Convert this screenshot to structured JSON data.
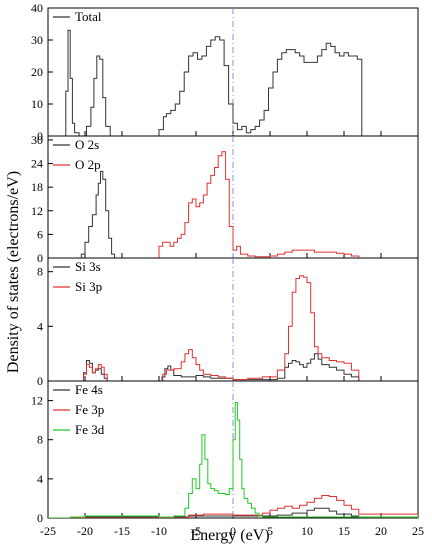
{
  "chart_data": {
    "type": "line",
    "xlabel": "Energy (eV)",
    "ylabel": "Density of states (electrons/eV)",
    "xlim": [
      -25,
      25
    ],
    "xticks": [
      "-25",
      "-20",
      "-15",
      "-10",
      "-5",
      "0",
      "5",
      "10",
      "15",
      "20",
      "25"
    ],
    "fermi_level": 0,
    "fermi_line_color": "#8c8cd8",
    "panels": [
      {
        "ylim": [
          0,
          40
        ],
        "yticks": [
          "0",
          "10",
          "20",
          "30",
          "40"
        ],
        "legend": [
          "Total"
        ],
        "series": [
          {
            "name": "Total",
            "color": "#333333",
            "x": [
              -25,
              -22.8,
              -22.6,
              -22.3,
              -22.0,
              -21.7,
              -21.4,
              -20.8,
              -19.8,
              -19.2,
              -18.8,
              -18.4,
              -18.0,
              -17.6,
              -17.2,
              -16.6,
              -16.0,
              -11.0,
              -10.0,
              -9.4,
              -9.0,
              -8.4,
              -7.8,
              -7.2,
              -6.6,
              -6.0,
              -5.4,
              -4.8,
              -4.2,
              -3.6,
              -3.0,
              -2.4,
              -1.8,
              -1.2,
              -0.6,
              0.0,
              0.6,
              1.2,
              1.8,
              2.4,
              3.0,
              3.6,
              4.2,
              4.8,
              5.4,
              6.0,
              6.6,
              7.2,
              7.8,
              8.4,
              9.0,
              9.6,
              10.2,
              10.8,
              11.4,
              12.0,
              12.6,
              13.2,
              13.8,
              14.4,
              15.0,
              15.6,
              16.2,
              16.8,
              17.4,
              18.0,
              25
            ],
            "y": [
              0,
              0,
              14,
              33,
              18,
              4,
              1,
              0,
              3,
              9,
              18,
              25,
              24,
              12,
              3,
              0,
              0,
              0,
              2,
              6,
              7,
              8,
              10,
              14,
              20,
              25,
              26,
              24,
              25,
              28,
              30,
              31,
              30,
              22,
              10,
              4,
              2,
              3,
              1,
              2,
              3,
              5,
              8,
              15,
              20,
              24,
              26,
              27,
              27,
              26,
              25,
              23,
              23,
              23,
              25,
              27,
              29,
              28,
              26,
              25,
              26,
              25,
              25,
              24,
              0,
              0,
              0
            ]
          }
        ]
      },
      {
        "ylim": [
          0,
          31
        ],
        "yticks": [
          "0",
          "6",
          "12",
          "18",
          "24",
          "30"
        ],
        "legend": [
          "O 2s",
          "O 2p"
        ],
        "series": [
          {
            "name": "O 2s",
            "color": "#333333",
            "x": [
              -25,
              -21.0,
              -20.5,
              -20.0,
              -19.5,
              -19.0,
              -18.5,
              -18.2,
              -17.9,
              -17.6,
              -17.2,
              -16.8,
              -16.4,
              -16.0,
              -15.0,
              25
            ],
            "y": [
              0,
              0,
              1,
              4,
              8,
              11,
              16,
              19,
              22,
              20,
              12,
              5,
              1,
              0,
              0,
              0
            ]
          },
          {
            "name": "O 2p",
            "color": "#e03030",
            "x": [
              -25,
              -10.5,
              -10.0,
              -9.5,
              -9.0,
              -8.5,
              -8.0,
              -7.5,
              -7.0,
              -6.5,
              -6.0,
              -5.5,
              -5.0,
              -4.5,
              -4.0,
              -3.5,
              -3.0,
              -2.5,
              -2.0,
              -1.5,
              -1.0,
              -0.5,
              0.0,
              0.5,
              1.0,
              2.0,
              3.0,
              4.0,
              5.0,
              6.0,
              7.0,
              8.0,
              9.0,
              10.0,
              11.0,
              12.0,
              13.0,
              14.0,
              15.0,
              16.0,
              17.0,
              25
            ],
            "y": [
              0,
              0,
              3,
              4,
              4,
              3,
              4,
              5,
              6,
              9,
              14,
              15,
              13,
              14,
              16,
              19,
              21,
              23,
              26,
              27,
              20,
              8,
              2,
              3,
              1,
              0.5,
              0.3,
              0.3,
              0.5,
              1,
              1.5,
              2,
              2,
              2,
              1.5,
              1.5,
              1.5,
              1.2,
              1,
              0.5,
              0,
              0
            ]
          }
        ]
      },
      {
        "ylim": [
          0,
          9
        ],
        "yticks": [
          "0",
          "4",
          "8"
        ],
        "legend": [
          "Si 3s",
          "Si 3p"
        ],
        "series": [
          {
            "name": "Si 3s",
            "color": "#333333",
            "x": [
              -25,
              -20.6,
              -20.2,
              -19.8,
              -19.4,
              -19.0,
              -18.6,
              -18.2,
              -17.8,
              -17.4,
              -17.0,
              -10.0,
              -9.6,
              -9.2,
              -8.8,
              -8.4,
              -8.0,
              -7.0,
              -6.0,
              -5.0,
              -4.0,
              -3.0,
              -2.0,
              0.0,
              2.0,
              4.0,
              6.0,
              7.0,
              7.5,
              8.0,
              8.5,
              9.0,
              9.5,
              10.0,
              10.5,
              11.0,
              11.5,
              12.0,
              13.0,
              14.0,
              15.0,
              16.0,
              17.0,
              25
            ],
            "y": [
              0,
              0,
              0.6,
              1.5,
              1.3,
              0.6,
              0.8,
              0.9,
              0.5,
              0.2,
              0,
              0,
              0.3,
              0.9,
              1.1,
              0.8,
              0.4,
              0.3,
              0.3,
              0.4,
              0.3,
              0.2,
              0.2,
              0.1,
              0.1,
              0.1,
              0.2,
              1.0,
              1.3,
              1.5,
              1.4,
              1.2,
              1.0,
              1.3,
              1.6,
              2.0,
              1.6,
              1.2,
              1.0,
              0.8,
              0.5,
              0.3,
              0,
              0
            ]
          },
          {
            "name": "Si 3p",
            "color": "#e03030",
            "x": [
              -25,
              -20.6,
              -20.2,
              -19.8,
              -19.4,
              -19.0,
              -18.6,
              -18.2,
              -17.8,
              -17.4,
              -17.0,
              -10.0,
              -9.5,
              -9.0,
              -8.0,
              -7.0,
              -6.5,
              -6.0,
              -5.5,
              -5.0,
              -4.5,
              -4.0,
              -3.0,
              -2.0,
              -1.0,
              0.0,
              2.0,
              4.0,
              6.0,
              7.0,
              7.5,
              8.0,
              8.5,
              9.0,
              9.5,
              10.0,
              10.5,
              11.0,
              11.5,
              12.0,
              13.0,
              14.0,
              15.0,
              16.0,
              17.0,
              25
            ],
            "y": [
              0,
              0,
              0.5,
              1.2,
              1.0,
              0.6,
              0.9,
              1.2,
              1.0,
              0.5,
              0,
              0,
              0.5,
              0.8,
              0.9,
              1.4,
              2.0,
              2.3,
              1.7,
              1.2,
              0.8,
              0.5,
              0.4,
              0.3,
              0.2,
              0.1,
              0.2,
              0.3,
              0.8,
              2.0,
              4.0,
              6.5,
              7.5,
              7.7,
              7.6,
              7.2,
              5.0,
              2.5,
              2.0,
              1.7,
              1.5,
              1.4,
              1.3,
              0.8,
              0,
              0
            ]
          }
        ]
      },
      {
        "ylim": [
          0,
          14
        ],
        "yticks": [
          "0",
          "4",
          "8",
          "12"
        ],
        "legend": [
          "Fe 4s",
          "Fe 3p",
          "Fe 3d"
        ],
        "series": [
          {
            "name": "Fe 4s",
            "color": "#333333",
            "x": [
              -25,
              -20.0,
              -18.0,
              -12.0,
              -9.0,
              -6.0,
              -3.0,
              0.0,
              3.0,
              6.0,
              8.0,
              10.0,
              11.0,
              12.0,
              13.0,
              14.0,
              16.0,
              17.0,
              25
            ],
            "y": [
              0,
              0.1,
              0.1,
              0.1,
              0.1,
              0.2,
              0.2,
              0.2,
              0.2,
              0.3,
              0.5,
              0.8,
              1.0,
              1.0,
              0.7,
              0.4,
              0.2,
              0,
              0
            ]
          },
          {
            "name": "Fe 3p",
            "color": "#e03030",
            "x": [
              -25,
              -8.0,
              -6.0,
              -4.0,
              -2.0,
              0.0,
              2.0,
              3.0,
              4.0,
              5.0,
              6.0,
              7.0,
              8.0,
              9.0,
              10.0,
              11.0,
              12.0,
              13.0,
              14.0,
              15.0,
              16.0,
              17.0,
              25
            ],
            "y": [
              0,
              0,
              0.3,
              0.4,
              0.4,
              0.3,
              0.3,
              0.3,
              0.5,
              0.8,
              1.0,
              1.2,
              1.0,
              1.3,
              1.6,
              2.0,
              2.3,
              2.2,
              1.8,
              1.3,
              0.9,
              0.4,
              0
            ]
          },
          {
            "name": "Fe 3d",
            "color": "#22cc22",
            "x": [
              -25,
              -22.0,
              -20.0,
              -18.0,
              -10.0,
              -8.0,
              -6.5,
              -6.0,
              -5.5,
              -5.0,
              -4.5,
              -4.2,
              -3.8,
              -3.4,
              -3.0,
              -2.5,
              -2.0,
              -1.5,
              -1.0,
              -0.5,
              0.0,
              0.3,
              0.6,
              0.9,
              1.2,
              1.5,
              2.0,
              2.5,
              3.0,
              3.5,
              4.0,
              5.0,
              6.0,
              8.0,
              10.0,
              12.0,
              14.0,
              16.0,
              25
            ],
            "y": [
              0,
              0.1,
              0.2,
              0.2,
              0.1,
              0.2,
              1.0,
              2.5,
              4.0,
              3.0,
              5.5,
              8.5,
              6.0,
              3.5,
              3.0,
              2.8,
              2.5,
              2.5,
              2.4,
              3.0,
              8.0,
              11.8,
              10.0,
              6.0,
              3.0,
              2.0,
              1.5,
              1.0,
              0.5,
              0.2,
              0.1,
              0.1,
              0.1,
              0.1,
              0.1,
              0.1,
              0.1,
              0.1,
              0
            ]
          }
        ]
      }
    ]
  }
}
